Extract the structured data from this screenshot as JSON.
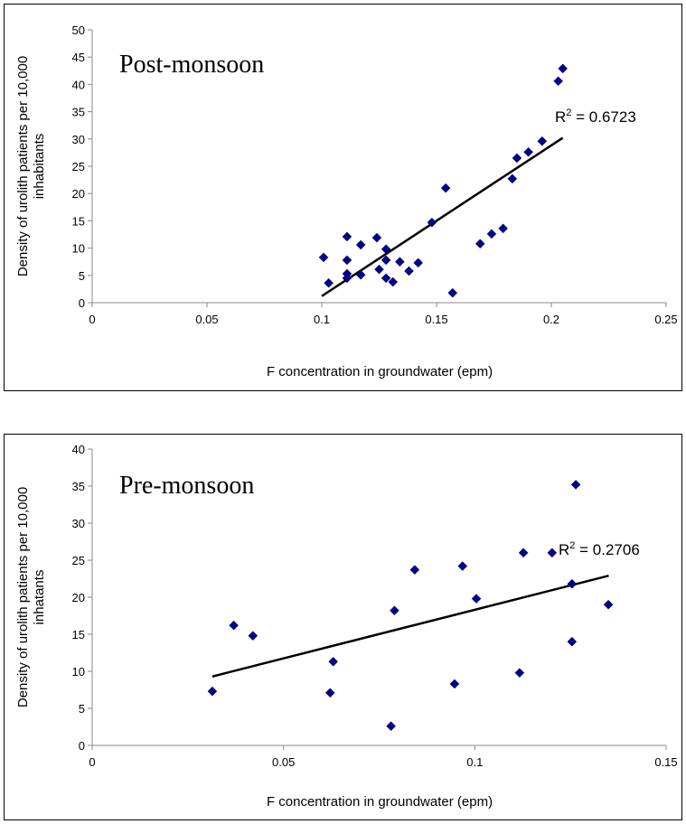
{
  "chart_data": [
    {
      "type": "scatter",
      "title": "Post-monsoon",
      "xlabel": "F concentration in groundwater (epm)",
      "ylabel_lines": [
        "Density of urolith patients per 10,000",
        "inhabitants"
      ],
      "xlim": [
        0,
        0.25
      ],
      "ylim": [
        0,
        50
      ],
      "xticks": [
        0,
        0.05,
        0.1,
        0.15,
        0.2,
        0.25
      ],
      "xtick_labels": [
        "0",
        "0.05",
        "0.1",
        "0.15",
        "0.2",
        "0.25"
      ],
      "yticks": [
        0,
        5,
        10,
        15,
        20,
        25,
        30,
        35,
        40,
        45,
        50
      ],
      "grid": false,
      "marker_color": "#00008B",
      "trendline": {
        "label_base": "R",
        "label_sup": "2",
        "label_value": " = 0.6723",
        "x": [
          0.1,
          0.205
        ],
        "y": [
          1.2,
          30.2
        ]
      },
      "points": [
        [
          0.1008,
          8.3
        ],
        [
          0.103,
          3.6
        ],
        [
          0.111,
          12.1
        ],
        [
          0.111,
          7.8
        ],
        [
          0.111,
          5.3
        ],
        [
          0.111,
          4.5
        ],
        [
          0.117,
          10.6
        ],
        [
          0.117,
          5.1
        ],
        [
          0.124,
          11.9
        ],
        [
          0.125,
          6.1
        ],
        [
          0.128,
          9.8
        ],
        [
          0.128,
          7.8
        ],
        [
          0.128,
          4.5
        ],
        [
          0.131,
          3.8
        ],
        [
          0.134,
          7.5
        ],
        [
          0.138,
          5.8
        ],
        [
          0.142,
          7.3
        ],
        [
          0.148,
          14.7
        ],
        [
          0.154,
          21.0
        ],
        [
          0.157,
          1.8
        ],
        [
          0.169,
          10.8
        ],
        [
          0.174,
          12.6
        ],
        [
          0.179,
          13.6
        ],
        [
          0.183,
          22.7
        ],
        [
          0.185,
          26.5
        ],
        [
          0.19,
          27.6
        ],
        [
          0.196,
          29.6
        ],
        [
          0.203,
          40.6
        ],
        [
          0.205,
          42.9
        ]
      ]
    },
    {
      "type": "scatter",
      "title": "Pre-monsoon",
      "xlabel": "F concentration in groundwater (epm)",
      "ylabel_lines": [
        "Density of urolith patients per 10,000",
        "inhatants"
      ],
      "xlim": [
        0,
        0.15
      ],
      "ylim": [
        0,
        40
      ],
      "xticks": [
        0,
        0.05,
        0.1,
        0.15
      ],
      "xtick_labels": [
        "0",
        "0.05",
        "0.1",
        "0.15"
      ],
      "yticks": [
        0,
        5,
        10,
        15,
        20,
        25,
        30,
        35,
        40
      ],
      "grid": false,
      "marker_color": "#00008B",
      "trendline": {
        "label_base": "R",
        "label_sup": "2",
        "label_value": " = 0.2706",
        "x": [
          0.0314,
          0.135
        ],
        "y": [
          9.3,
          22.9
        ]
      },
      "points": [
        [
          0.0314,
          7.3
        ],
        [
          0.037,
          16.2
        ],
        [
          0.042,
          14.8
        ],
        [
          0.0622,
          7.1
        ],
        [
          0.063,
          11.3
        ],
        [
          0.0781,
          2.6
        ],
        [
          0.079,
          18.2
        ],
        [
          0.0843,
          23.7
        ],
        [
          0.0947,
          8.3
        ],
        [
          0.0968,
          24.2
        ],
        [
          0.1004,
          19.8
        ],
        [
          0.1117,
          9.8
        ],
        [
          0.1127,
          26.0
        ],
        [
          0.1202,
          26.0
        ],
        [
          0.1254,
          21.8
        ],
        [
          0.1254,
          14.0
        ],
        [
          0.1264,
          35.2
        ],
        [
          0.1349,
          19.0
        ]
      ]
    }
  ]
}
